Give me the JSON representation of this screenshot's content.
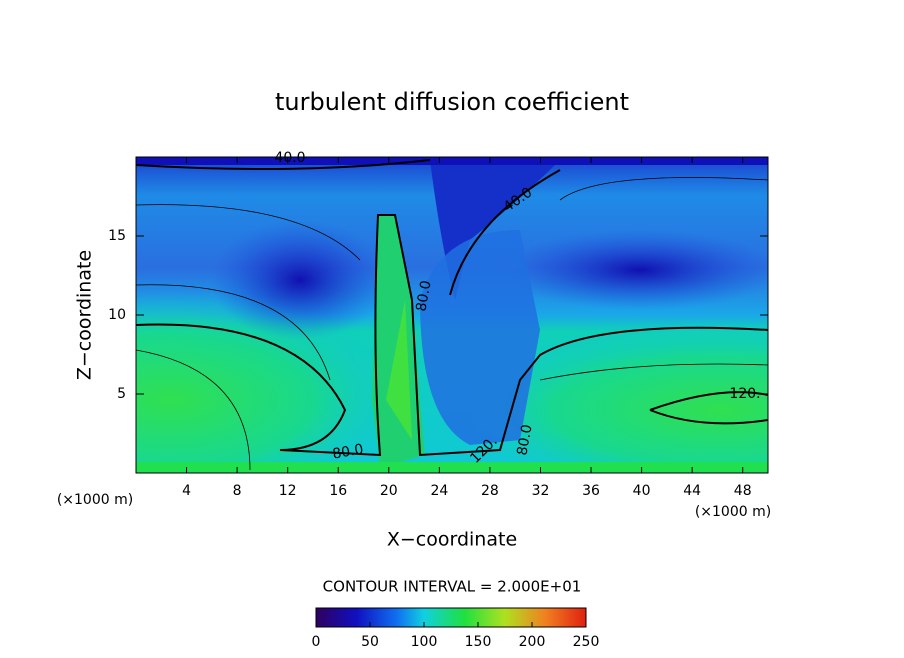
{
  "chart_data": {
    "type": "contour",
    "title": "turbulent diffusion coefficient",
    "xlabel": "X−coordinate",
    "ylabel": "Z−coordinate",
    "x_unit_left": "(×1000 m)",
    "x_unit_right": "(×1000 m)",
    "xlim": [
      0,
      50
    ],
    "xticks": [
      4,
      8,
      12,
      16,
      20,
      24,
      28,
      32,
      36,
      40,
      44,
      48
    ],
    "ylim": [
      0,
      20
    ],
    "yticks": [
      5,
      10,
      15
    ],
    "contour_interval": "CONTOUR INTERVAL = 2.000E+01",
    "contour_labels": [
      "40.0",
      "40.0",
      "80.0",
      "80.0",
      "80.0",
      "120.",
      "120."
    ],
    "colorbar": {
      "clim": [
        0,
        250
      ],
      "ticks": [
        0,
        50,
        100,
        150,
        200,
        250
      ]
    }
  }
}
